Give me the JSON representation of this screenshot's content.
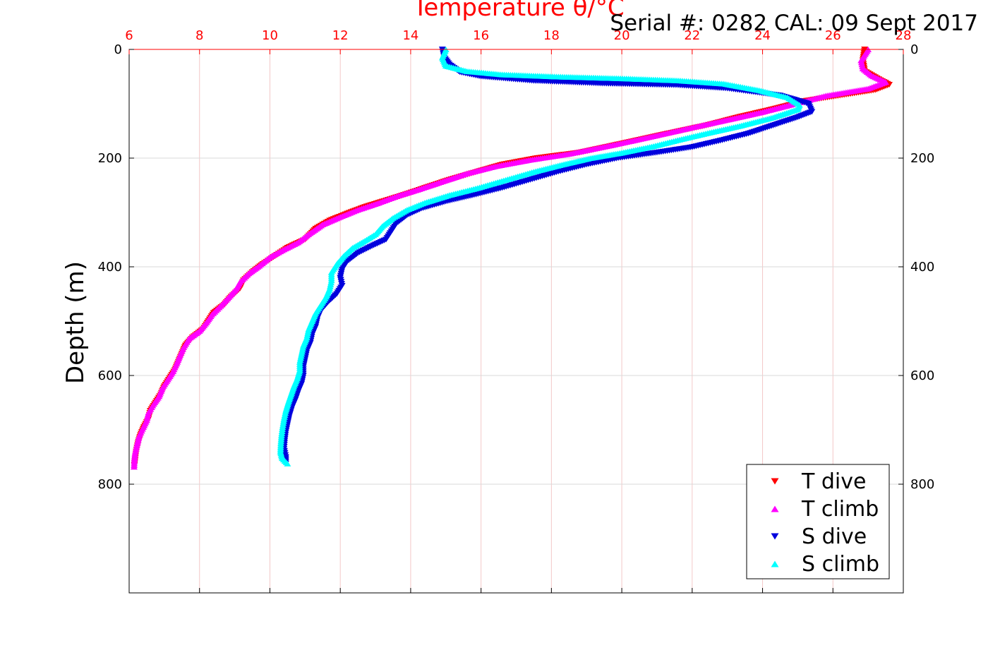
{
  "serial_label": "Serial #: 0282  CAL: 09 Sept 2017",
  "colors": {
    "t_dive": "#ff0000",
    "t_climb": "#ff00ff",
    "s_dive": "#0000dd",
    "s_climb": "#00ffff",
    "top_axis": "#ff0000",
    "grid_v": "#f3c8c8",
    "grid_h": "#d9d9d9"
  },
  "chart_data": {
    "type": "scatter",
    "xlabel": "Temperature θ/°C",
    "ylabel": "Depth (m)",
    "xlim": [
      6,
      28
    ],
    "ylim": [
      1000,
      0
    ],
    "x_ticks": [
      6,
      8,
      10,
      12,
      14,
      16,
      18,
      20,
      22,
      24,
      26,
      28
    ],
    "y_ticks": [
      0,
      200,
      400,
      600,
      800
    ],
    "grid": true,
    "legend_position": "bottom-right",
    "series": [
      {
        "name": "T dive",
        "marker": "triangle-down",
        "color": "#ff0000",
        "points": [
          [
            26.9,
            0
          ],
          [
            26.85,
            20
          ],
          [
            26.9,
            40
          ],
          [
            27.3,
            55
          ],
          [
            27.6,
            65
          ],
          [
            27.2,
            75
          ],
          [
            26.2,
            85
          ],
          [
            25.2,
            95
          ],
          [
            24.3,
            110
          ],
          [
            23.3,
            125
          ],
          [
            22.4,
            140
          ],
          [
            21.3,
            155
          ],
          [
            20.1,
            172
          ],
          [
            18.8,
            190
          ],
          [
            17.6,
            200
          ],
          [
            16.6,
            212
          ],
          [
            15.9,
            225
          ],
          [
            15.1,
            240
          ],
          [
            14.4,
            255
          ],
          [
            13.8,
            268
          ],
          [
            13.2,
            280
          ],
          [
            12.7,
            290
          ],
          [
            12.2,
            302
          ],
          [
            11.7,
            315
          ],
          [
            11.3,
            330
          ],
          [
            11.0,
            350
          ],
          [
            10.5,
            365
          ],
          [
            10.2,
            378
          ],
          [
            9.8,
            395
          ],
          [
            9.5,
            410
          ],
          [
            9.25,
            425
          ],
          [
            9.15,
            440
          ],
          [
            8.9,
            455
          ],
          [
            8.7,
            470
          ],
          [
            8.4,
            485
          ],
          [
            8.25,
            500
          ],
          [
            8.1,
            515
          ],
          [
            7.8,
            530
          ],
          [
            7.6,
            545
          ],
          [
            7.5,
            560
          ],
          [
            7.4,
            575
          ],
          [
            7.3,
            590
          ],
          [
            7.15,
            605
          ],
          [
            7.0,
            620
          ],
          [
            6.9,
            635
          ],
          [
            6.75,
            650
          ],
          [
            6.6,
            665
          ],
          [
            6.55,
            680
          ],
          [
            6.42,
            695
          ],
          [
            6.32,
            710
          ],
          [
            6.25,
            725
          ],
          [
            6.2,
            740
          ],
          [
            6.17,
            755
          ],
          [
            6.15,
            765
          ]
        ]
      },
      {
        "name": "T climb",
        "marker": "triangle-up",
        "color": "#ff00ff",
        "points": [
          [
            27.0,
            0
          ],
          [
            26.8,
            20
          ],
          [
            26.85,
            35
          ],
          [
            27.1,
            48
          ],
          [
            27.5,
            60
          ],
          [
            27.0,
            72
          ],
          [
            25.8,
            85
          ],
          [
            24.9,
            100
          ],
          [
            24.0,
            115
          ],
          [
            23.1,
            128
          ],
          [
            22.1,
            142
          ],
          [
            21.0,
            158
          ],
          [
            19.8,
            175
          ],
          [
            18.5,
            192
          ],
          [
            17.4,
            203
          ],
          [
            16.4,
            215
          ],
          [
            15.6,
            228
          ],
          [
            14.9,
            243
          ],
          [
            14.2,
            258
          ],
          [
            13.6,
            270
          ],
          [
            13.1,
            282
          ],
          [
            12.5,
            295
          ],
          [
            12.0,
            308
          ],
          [
            11.5,
            322
          ],
          [
            11.1,
            340
          ],
          [
            10.8,
            355
          ],
          [
            10.4,
            368
          ],
          [
            10.0,
            382
          ],
          [
            9.7,
            398
          ],
          [
            9.4,
            412
          ],
          [
            9.15,
            428
          ],
          [
            9.05,
            440
          ],
          [
            8.8,
            458
          ],
          [
            8.6,
            472
          ],
          [
            8.35,
            488
          ],
          [
            8.2,
            502
          ],
          [
            8.0,
            518
          ],
          [
            7.7,
            532
          ],
          [
            7.55,
            548
          ],
          [
            7.45,
            562
          ],
          [
            7.35,
            578
          ],
          [
            7.25,
            592
          ],
          [
            7.1,
            607
          ],
          [
            6.95,
            622
          ],
          [
            6.85,
            638
          ],
          [
            6.7,
            652
          ],
          [
            6.55,
            668
          ],
          [
            6.5,
            682
          ],
          [
            6.38,
            698
          ],
          [
            6.28,
            712
          ],
          [
            6.22,
            728
          ],
          [
            6.17,
            742
          ],
          [
            6.15,
            755
          ],
          [
            6.14,
            768
          ]
        ]
      },
      {
        "name": "S dive",
        "marker": "triangle-down",
        "color": "#0000dd",
        "points": [
          [
            14.9,
            0
          ],
          [
            14.95,
            15
          ],
          [
            15.1,
            28
          ],
          [
            15.4,
            42
          ],
          [
            16.0,
            50
          ],
          [
            17.5,
            58
          ],
          [
            19.5,
            63
          ],
          [
            21.6,
            66
          ],
          [
            23.0,
            72
          ],
          [
            24.5,
            85
          ],
          [
            25.3,
            100
          ],
          [
            25.4,
            115
          ],
          [
            25.0,
            125
          ],
          [
            24.3,
            140
          ],
          [
            23.6,
            155
          ],
          [
            22.8,
            168
          ],
          [
            22.0,
            180
          ],
          [
            21.0,
            190
          ],
          [
            19.9,
            200
          ],
          [
            19.0,
            212
          ],
          [
            18.2,
            225
          ],
          [
            17.4,
            240
          ],
          [
            16.6,
            255
          ],
          [
            15.8,
            268
          ],
          [
            15.0,
            280
          ],
          [
            14.3,
            293
          ],
          [
            13.9,
            305
          ],
          [
            13.6,
            320
          ],
          [
            13.45,
            335
          ],
          [
            13.3,
            350
          ],
          [
            12.9,
            362
          ],
          [
            12.5,
            375
          ],
          [
            12.2,
            390
          ],
          [
            12.05,
            405
          ],
          [
            12.0,
            420
          ],
          [
            12.05,
            435
          ],
          [
            11.9,
            450
          ],
          [
            11.65,
            465
          ],
          [
            11.45,
            480
          ],
          [
            11.35,
            495
          ],
          [
            11.3,
            510
          ],
          [
            11.2,
            525
          ],
          [
            11.15,
            540
          ],
          [
            11.05,
            555
          ],
          [
            11.0,
            570
          ],
          [
            10.95,
            585
          ],
          [
            10.95,
            600
          ],
          [
            10.9,
            615
          ],
          [
            10.8,
            630
          ],
          [
            10.72,
            645
          ],
          [
            10.62,
            660
          ],
          [
            10.55,
            675
          ],
          [
            10.5,
            690
          ],
          [
            10.45,
            705
          ],
          [
            10.42,
            720
          ],
          [
            10.4,
            735
          ],
          [
            10.45,
            750
          ],
          [
            10.45,
            762
          ]
        ]
      },
      {
        "name": "S climb",
        "marker": "triangle-up",
        "color": "#00ffff",
        "points": [
          [
            15.0,
            0
          ],
          [
            14.9,
            15
          ],
          [
            15.0,
            30
          ],
          [
            15.6,
            40
          ],
          [
            16.6,
            46
          ],
          [
            18.2,
            50
          ],
          [
            19.9,
            53
          ],
          [
            21.6,
            57
          ],
          [
            22.9,
            63
          ],
          [
            23.9,
            75
          ],
          [
            24.7,
            88
          ],
          [
            25.05,
            102
          ],
          [
            25.0,
            110
          ],
          [
            24.3,
            125
          ],
          [
            23.4,
            140
          ],
          [
            22.5,
            153
          ],
          [
            21.7,
            165
          ],
          [
            20.9,
            178
          ],
          [
            20.0,
            190
          ],
          [
            19.1,
            200
          ],
          [
            18.3,
            212
          ],
          [
            17.5,
            225
          ],
          [
            16.7,
            240
          ],
          [
            15.9,
            255
          ],
          [
            15.1,
            268
          ],
          [
            14.4,
            282
          ],
          [
            13.9,
            295
          ],
          [
            13.5,
            310
          ],
          [
            13.2,
            325
          ],
          [
            13.0,
            340
          ],
          [
            12.7,
            352
          ],
          [
            12.35,
            365
          ],
          [
            12.1,
            380
          ],
          [
            11.9,
            395
          ],
          [
            11.75,
            410
          ],
          [
            11.75,
            425
          ],
          [
            11.7,
            440
          ],
          [
            11.6,
            455
          ],
          [
            11.45,
            470
          ],
          [
            11.3,
            485
          ],
          [
            11.2,
            500
          ],
          [
            11.1,
            515
          ],
          [
            11.05,
            530
          ],
          [
            10.95,
            545
          ],
          [
            10.9,
            560
          ],
          [
            10.85,
            575
          ],
          [
            10.85,
            590
          ],
          [
            10.78,
            605
          ],
          [
            10.68,
            620
          ],
          [
            10.6,
            635
          ],
          [
            10.52,
            650
          ],
          [
            10.45,
            665
          ],
          [
            10.4,
            680
          ],
          [
            10.36,
            695
          ],
          [
            10.33,
            710
          ],
          [
            10.31,
            725
          ],
          [
            10.3,
            740
          ],
          [
            10.35,
            752
          ],
          [
            10.5,
            762
          ]
        ]
      }
    ]
  }
}
